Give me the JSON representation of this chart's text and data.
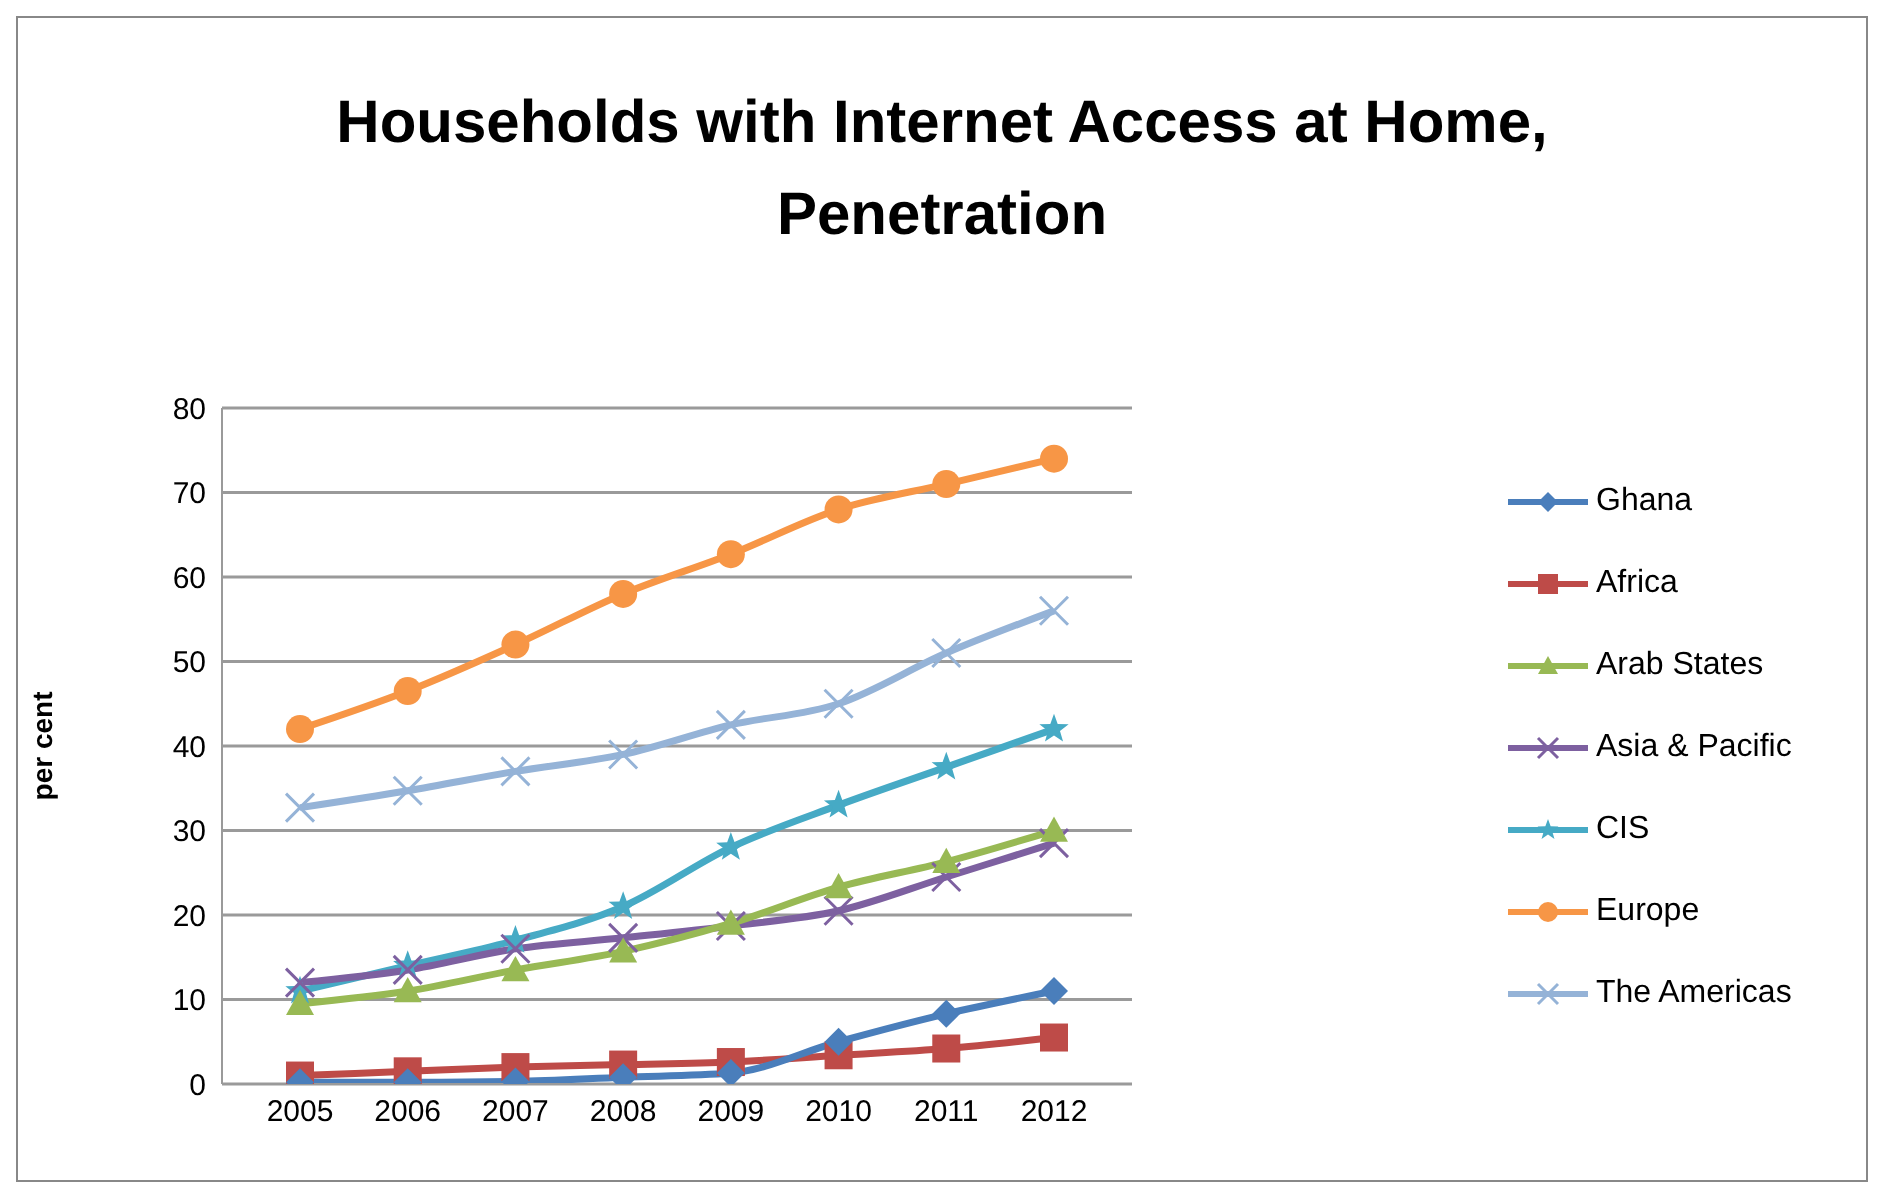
{
  "chart_data": {
    "type": "line",
    "title": "Households with Internet Access at Home, Penetration",
    "ylabel": "per cent",
    "categories": [
      "2005",
      "2006",
      "2007",
      "2008",
      "2009",
      "2010",
      "2011",
      "2012"
    ],
    "series": [
      {
        "name": "Ghana",
        "color": "#4a7ebb",
        "marker": "diamond",
        "values": [
          0.2,
          0.2,
          0.3,
          0.8,
          1.3,
          5,
          8.3,
          11
        ]
      },
      {
        "name": "Africa",
        "color": "#be4b48",
        "marker": "square",
        "values": [
          1,
          1.5,
          2,
          2.3,
          2.6,
          3.4,
          4.2,
          5.5
        ]
      },
      {
        "name": "Arab States",
        "color": "#98b954",
        "marker": "triangle",
        "values": [
          9.5,
          11,
          13.5,
          15.7,
          19,
          23.3,
          26.3,
          30
        ]
      },
      {
        "name": "Asia & Pacific",
        "color": "#7d60a0",
        "marker": "cross",
        "values": [
          12,
          13.5,
          16,
          17.3,
          18.7,
          20.5,
          24.5,
          28.5
        ]
      },
      {
        "name": "CIS",
        "color": "#46aac5",
        "marker": "star",
        "values": [
          11,
          14,
          17,
          21,
          28,
          33,
          37.5,
          42
        ]
      },
      {
        "name": "Europe",
        "color": "#f79646",
        "marker": "circle",
        "values": [
          42,
          46.5,
          52,
          58,
          62.7,
          68,
          71,
          74
        ]
      },
      {
        "name": "The Americas",
        "color": "#95b3d7",
        "marker": "cross",
        "values": [
          32.7,
          34.7,
          37,
          39,
          42.5,
          45,
          51,
          56
        ]
      }
    ],
    "ylim": [
      0,
      80
    ],
    "yticks": [
      0,
      10,
      20,
      30,
      40,
      50,
      60,
      70,
      80
    ],
    "grid": "y",
    "legend": "right",
    "line_style": "solid"
  }
}
